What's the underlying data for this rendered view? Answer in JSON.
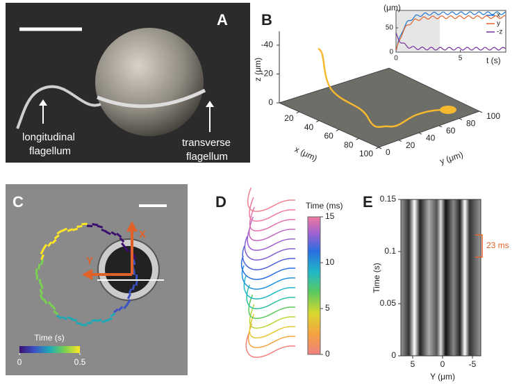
{
  "panel_a": {
    "label": "A",
    "longitudinal": [
      "longitudinal",
      "flagellum"
    ],
    "transverse": [
      "transverse",
      "flagellum"
    ]
  },
  "panel_b": {
    "label": "B",
    "z_label": "z (μm)",
    "z_ticks": [
      -40,
      -20,
      0
    ],
    "x_label": "x (μm)",
    "x_ticks": [
      20,
      40,
      60,
      80,
      100
    ],
    "y_label": "y (μm)",
    "y_ticks": [
      0,
      20,
      40,
      60,
      80,
      100
    ],
    "inset": {
      "y_unit": "(μm)",
      "y_ticks": [
        0,
        50
      ],
      "x_label": "t (s)",
      "x_ticks": [
        0,
        5
      ],
      "legend": [
        {
          "name": "x",
          "color": "#1f77d4"
        },
        {
          "name": "y",
          "color": "#e0622a"
        },
        {
          "name": "-z",
          "color": "#7b2f9e"
        }
      ]
    }
  },
  "panel_c": {
    "label": "C",
    "x_arrow": "X",
    "y_arrow": "Y",
    "colorbar_label": "Time (s)",
    "colorbar_ticks": [
      0,
      0.5
    ]
  },
  "panel_d": {
    "label": "D",
    "colorbar_label": "Time (ms)",
    "colorbar_ticks": [
      0,
      5,
      10,
      15
    ]
  },
  "panel_e": {
    "label": "E",
    "y_label": "Time (s)",
    "y_ticks": [
      0,
      0.05,
      0.1,
      0.15
    ],
    "x_label": "Y (μm)",
    "x_ticks": [
      5,
      0,
      -5
    ],
    "annotation": "23 ms"
  }
}
